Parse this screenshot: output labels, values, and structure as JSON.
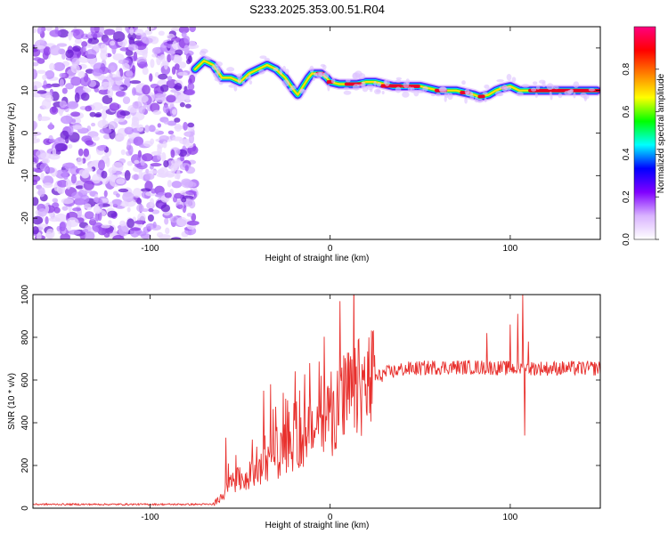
{
  "title": "S233.2025.353.00.51.R04",
  "chart_data": [
    {
      "type": "heatmap",
      "name": "spectrogram",
      "xlabel": "Height of straight line (km)",
      "ylabel": "Frequency (Hz)",
      "xlim": [
        -165,
        150
      ],
      "ylim": [
        -25,
        25
      ],
      "xticks": [
        -100,
        0,
        100
      ],
      "xtick_labels": [
        "-100",
        "0",
        "100"
      ],
      "yticks": [
        20,
        10,
        0,
        -10,
        -20
      ],
      "ytick_labels": [
        "20",
        "10",
        "0",
        "-10",
        "-20"
      ],
      "noise_region_x": [
        -165,
        -75
      ],
      "ridge": {
        "x": [
          -75,
          -70,
          -65,
          -60,
          -55,
          -50,
          -45,
          -40,
          -35,
          -30,
          -25,
          -20,
          -18,
          -15,
          -12,
          -10,
          -8,
          -5,
          -2,
          0,
          5,
          10,
          15,
          20,
          25,
          30,
          35,
          40,
          45,
          50,
          55,
          60,
          65,
          70,
          75,
          80,
          83,
          88,
          92,
          95,
          100,
          105,
          110,
          120,
          130,
          140,
          148
        ],
        "freq": [
          15,
          17,
          16,
          13,
          13,
          12,
          14,
          15,
          16,
          15,
          13,
          10,
          9,
          11,
          13,
          14,
          14,
          14,
          13,
          12,
          11.5,
          11.5,
          11.5,
          12,
          12,
          11.5,
          11,
          11,
          11,
          11,
          10.5,
          10,
          10,
          10,
          9.5,
          9,
          8.5,
          9,
          10,
          10.5,
          11,
          10,
          10,
          10,
          10,
          10,
          10
        ]
      },
      "colorbar": {
        "label": "Normalized spectral amplitude",
        "ticks": [
          0.0,
          0.2,
          0.4,
          0.6,
          0.8
        ],
        "tick_labels": [
          "0.0",
          "0.2",
          "0.4",
          "0.6",
          "0.8"
        ],
        "colors": [
          "#ffffff",
          "#d9b3ff",
          "#8000ff",
          "#0000ff",
          "#00ffff",
          "#00ff00",
          "#ffff00",
          "#ff8000",
          "#ff0000",
          "#ff0080"
        ]
      }
    },
    {
      "type": "line",
      "name": "snr",
      "xlabel": "Height of straight line (km)",
      "ylabel": "SNR (10 * v/v)",
      "xlim": [
        -165,
        150
      ],
      "ylim": [
        0,
        1000
      ],
      "xticks": [
        -100,
        0,
        100
      ],
      "xtick_labels": [
        "-100",
        "0",
        "100"
      ],
      "yticks": [
        0,
        200,
        400,
        600,
        800,
        1000
      ],
      "ytick_labels": [
        "0",
        "200",
        "400",
        "600",
        "800",
        "1000"
      ],
      "color": "#e8302d",
      "trend": {
        "x": [
          -165,
          -65,
          -62,
          -55,
          -45,
          -35,
          -25,
          -15,
          -5,
          0,
          10,
          20,
          30,
          40,
          60,
          80,
          100,
          120,
          150
        ],
        "y": [
          18,
          18,
          40,
          120,
          150,
          200,
          280,
          330,
          400,
          430,
          520,
          580,
          630,
          650,
          660,
          660,
          655,
          655,
          655
        ]
      },
      "spikes": {
        "x": [
          -58,
          -37,
          -33,
          -31,
          -26,
          -5,
          87,
          100,
          104,
          107,
          108,
          110
        ],
        "y": [
          330,
          550,
          580,
          240,
          540,
          620,
          820,
          860,
          910,
          1000,
          340,
          780
        ]
      }
    }
  ]
}
